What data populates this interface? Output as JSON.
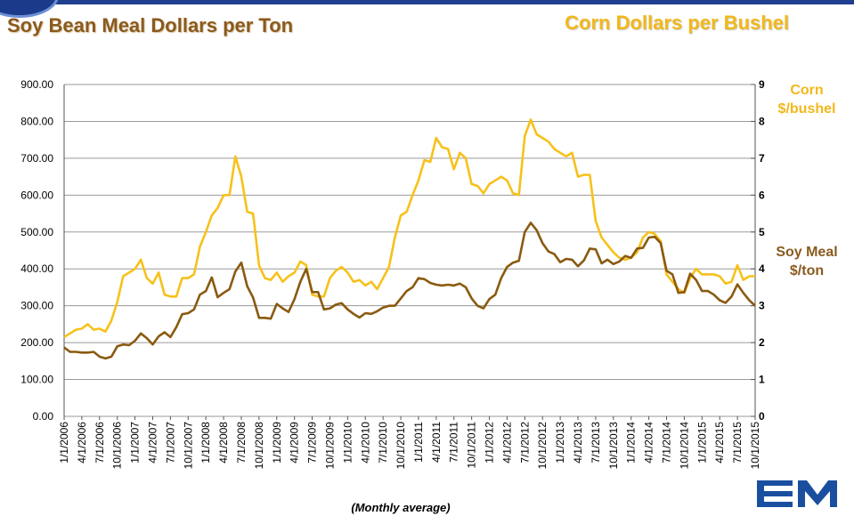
{
  "titles": {
    "left": "Soy Bean Meal Dollars per Ton",
    "right": "Corn Dollars per Bushel"
  },
  "caption": "(Monthly average)",
  "chart_data": {
    "type": "line",
    "y_left": {
      "min": 0,
      "max": 900,
      "ticks": [
        "0.00",
        "100.00",
        "200.00",
        "300.00",
        "400.00",
        "500.00",
        "600.00",
        "700.00",
        "800.00",
        "900.00"
      ]
    },
    "y_right": {
      "min": 0,
      "max": 9,
      "ticks": [
        "0",
        "1",
        "2",
        "3",
        "4",
        "5",
        "6",
        "7",
        "8",
        "9"
      ]
    },
    "x_ticks": [
      "1/1/2006",
      "4/1/2006",
      "7/1/2006",
      "10/1/2006",
      "1/1/2007",
      "4/1/2007",
      "7/1/2007",
      "10/1/2007",
      "1/1/2008",
      "4/1/2008",
      "7/1/2008",
      "10/1/2008",
      "1/1/2009",
      "4/1/2009",
      "7/1/2009",
      "10/1/2009",
      "1/1/2010",
      "4/1/2010",
      "7/1/2010",
      "10/1/2010",
      "1/1/2011",
      "4/1/2011",
      "7/1/2011",
      "10/1/2011",
      "1/1/2012",
      "4/1/2012",
      "7/1/2012",
      "10/1/2012",
      "1/1/2013",
      "4/1/2013",
      "7/1/2013",
      "10/1/2013",
      "1/1/2014",
      "4/1/2014",
      "7/1/2014",
      "10/1/2014",
      "1/1/2015",
      "4/1/2015",
      "7/1/2015",
      "10/1/2015"
    ],
    "grid": true,
    "legend": [
      {
        "lines": [
          "Corn",
          "$/bushel"
        ],
        "color": "#f2b81a",
        "placement": "right-top"
      },
      {
        "lines": [
          "Soy Meal",
          "$/ton"
        ],
        "color": "#8a5a1e",
        "placement": "right-middle"
      }
    ],
    "series": [
      {
        "axis": "right",
        "color": "#f7c11a",
        "values": [
          2.15,
          2.25,
          2.35,
          2.38,
          2.5,
          2.35,
          2.38,
          2.3,
          2.6,
          3.1,
          3.8,
          3.9,
          4.0,
          4.25,
          3.75,
          3.6,
          3.9,
          3.3,
          3.25,
          3.25,
          3.75,
          3.75,
          3.85,
          4.6,
          5.0,
          5.45,
          5.65,
          6.0,
          6.0,
          7.05,
          6.5,
          5.55,
          5.5,
          4.1,
          3.75,
          3.7,
          3.9,
          3.65,
          3.8,
          3.9,
          4.2,
          4.1,
          3.3,
          3.25,
          3.25,
          3.75,
          3.95,
          4.05,
          3.9,
          3.65,
          3.7,
          3.55,
          3.65,
          3.45,
          3.75,
          4.05,
          4.85,
          5.45,
          5.55,
          6.0,
          6.4,
          6.95,
          6.9,
          7.55,
          7.3,
          7.25,
          6.7,
          7.15,
          7.0,
          6.3,
          6.25,
          6.05,
          6.3,
          6.4,
          6.5,
          6.4,
          6.05,
          6.0,
          7.6,
          8.05,
          7.65,
          7.55,
          7.45,
          7.25,
          7.15,
          7.05,
          7.15,
          6.5,
          6.55,
          6.55,
          5.3,
          4.85,
          4.65,
          4.45,
          4.3,
          4.25,
          4.3,
          4.45,
          4.85,
          5.0,
          4.95,
          4.75,
          3.85,
          3.65,
          3.45,
          3.35,
          3.75,
          4.0,
          3.85,
          3.85,
          3.85,
          3.8,
          3.6,
          3.65,
          4.1,
          3.7,
          3.8,
          3.8
        ]
      },
      {
        "axis": "left",
        "color": "#8a5a10",
        "values": [
          187,
          175,
          175,
          173,
          173,
          175,
          162,
          157,
          162,
          190,
          195,
          193,
          205,
          225,
          212,
          195,
          217,
          228,
          215,
          242,
          277,
          280,
          290,
          330,
          340,
          377,
          323,
          335,
          345,
          393,
          417,
          353,
          322,
          267,
          267,
          265,
          305,
          293,
          283,
          318,
          365,
          400,
          337,
          337,
          290,
          293,
          303,
          307,
          290,
          278,
          268,
          280,
          278,
          285,
          295,
          300,
          300,
          320,
          340,
          350,
          375,
          372,
          362,
          357,
          355,
          357,
          355,
          360,
          350,
          320,
          300,
          293,
          318,
          330,
          375,
          405,
          417,
          422,
          500,
          525,
          505,
          470,
          447,
          440,
          418,
          427,
          425,
          407,
          423,
          455,
          453,
          415,
          425,
          413,
          420,
          435,
          430,
          455,
          457,
          485,
          487,
          470,
          395,
          385,
          335,
          337,
          387,
          370,
          340,
          340,
          330,
          315,
          308,
          325,
          358,
          335,
          315,
          300
        ]
      }
    ]
  }
}
